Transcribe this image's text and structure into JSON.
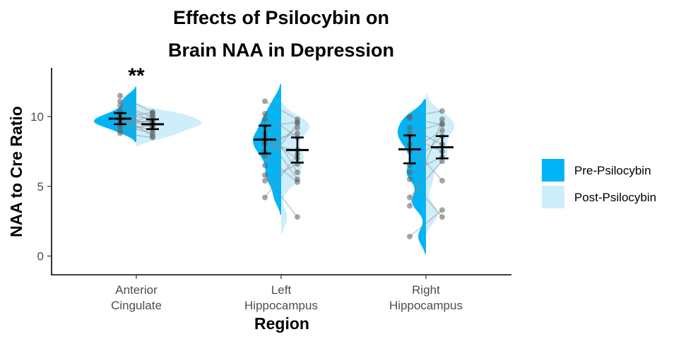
{
  "chart_data": {
    "type": "scatter",
    "title_line1": "Effects of Psilocybin on",
    "title_line2": "Brain NAA in Depression",
    "xlabel": "Region",
    "ylabel": "NAA to Cre Ratio",
    "ylim": [
      0,
      13
    ],
    "yticks": [
      0,
      5,
      10
    ],
    "grid": false,
    "legend_position": "right",
    "categories": [
      {
        "line1": "Anterior",
        "line2": "Cingulate"
      },
      {
        "line1": "Left",
        "line2": "Hippocampus"
      },
      {
        "line1": "Right",
        "line2": "Hippocampus"
      }
    ],
    "annotations": [
      {
        "category": 0,
        "text": "**"
      }
    ],
    "series": [
      {
        "name": "Pre-Psilocybin",
        "color": "#00b4f5",
        "means": [
          9.85,
          8.35,
          7.65
        ],
        "error": [
          0.4,
          1.0,
          1.0
        ]
      },
      {
        "name": "Post-Psilocybin",
        "color": "#cdeefa",
        "means": [
          9.45,
          7.6,
          7.8
        ],
        "error": [
          0.35,
          0.9,
          0.8
        ]
      }
    ],
    "paired_points": [
      {
        "category": 0,
        "pre": [
          11.5,
          11.1,
          10.8,
          10.4,
          10.2,
          10.1,
          9.9,
          9.8,
          9.7,
          9.6,
          9.5,
          9.4,
          9.3,
          9.0,
          8.8
        ],
        "post": [
          10.3,
          9.5,
          10.0,
          9.2,
          9.8,
          8.6,
          10.3,
          9.3,
          9.6,
          9.0,
          9.7,
          8.8,
          10.1,
          9.4,
          8.5
        ]
      },
      {
        "category": 1,
        "pre": [
          11.1,
          10.2,
          9.8,
          9.3,
          8.8,
          8.5,
          8.2,
          8.0,
          7.5,
          7.2,
          6.5,
          5.8,
          5.4,
          4.2
        ],
        "post": [
          9.8,
          8.5,
          6.0,
          9.6,
          5.5,
          7.0,
          8.8,
          7.6,
          9.2,
          5.3,
          9.5,
          2.8,
          6.6,
          7.3
        ]
      },
      {
        "category": 2,
        "pre": [
          10.0,
          9.9,
          9.2,
          8.8,
          8.6,
          8.0,
          7.5,
          6.5,
          6.0,
          5.5,
          4.2,
          3.6,
          1.4
        ],
        "post": [
          10.4,
          9.4,
          8.0,
          9.5,
          7.5,
          5.4,
          9.0,
          8.6,
          7.1,
          2.8,
          6.8,
          9.8,
          3.3
        ]
      }
    ]
  }
}
